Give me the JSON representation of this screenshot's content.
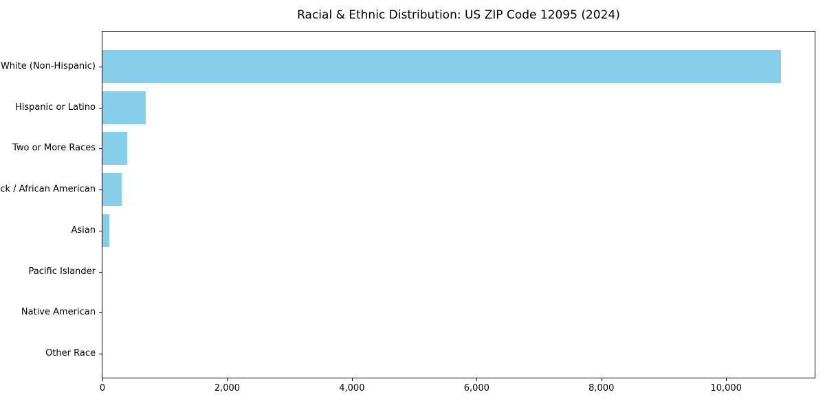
{
  "chart_data": {
    "type": "bar",
    "orientation": "horizontal",
    "title": "Racial & Ethnic Distribution: US ZIP Code 12095 (2024)",
    "categories": [
      "White (Non-Hispanic)",
      "Hispanic or Latino",
      "Two or More Races",
      "Black / African American",
      "Asian",
      "Pacific Islander",
      "Native American",
      "Other Race"
    ],
    "values": [
      10875,
      690,
      395,
      310,
      105,
      0,
      0,
      0
    ],
    "xlabel": "",
    "ylabel": "",
    "xlim": [
      0,
      11420
    ],
    "x_ticks": [
      0,
      2000,
      4000,
      6000,
      8000,
      10000
    ],
    "x_tick_labels": [
      "0",
      "2,000",
      "4,000",
      "6,000",
      "8,000",
      "10,000"
    ],
    "bar_color": "#87CEEB",
    "grid": false,
    "legend": null,
    "categories_order": "largest value at top, y-axis inverted",
    "background_color": "#ffffff",
    "text_color": "#000000"
  }
}
